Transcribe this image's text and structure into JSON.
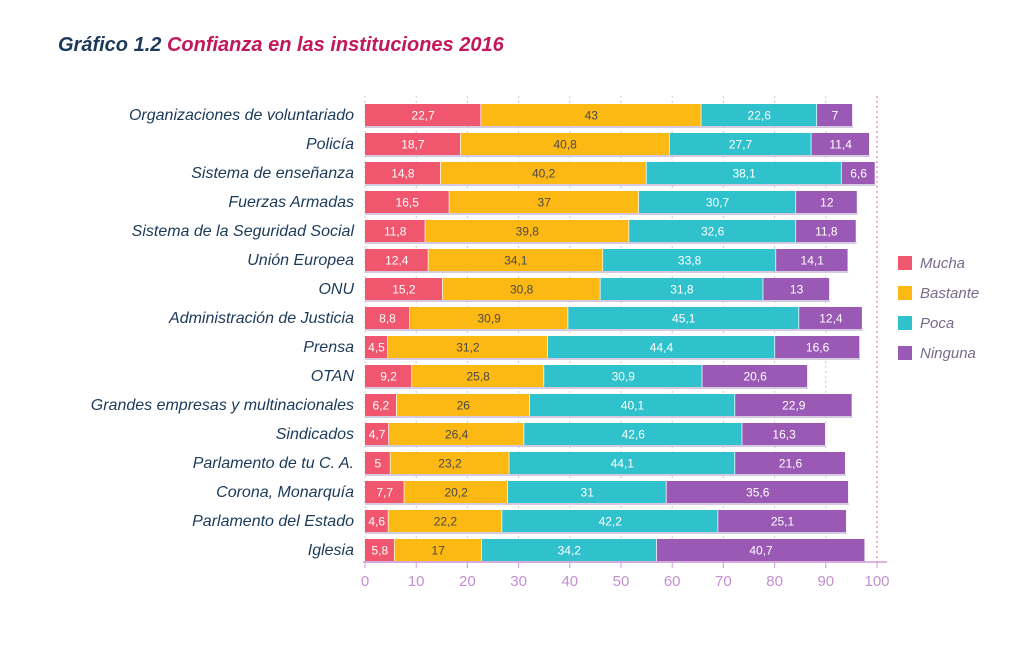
{
  "title": {
    "number": "Gráfico 1.2",
    "text": "Confianza en las instituciones 2016"
  },
  "chart_data": {
    "type": "bar",
    "orientation": "horizontal",
    "stacked": true,
    "title": "Gráfico 1.2 Confianza en las instituciones 2016",
    "categories": [
      "Organizaciones de voluntariado",
      "Policía",
      "Sistema de enseñanza",
      "Fuerzas Armadas",
      "Sistema de la Seguridad Social",
      "Unión Europea",
      "ONU",
      "Administración de Justicia",
      "Prensa",
      "OTAN",
      "Grandes empresas y multinacionales",
      "Sindicados",
      "Parlamento de tu C. A.",
      "Corona, Monarquía",
      "Parlamento del Estado",
      "Iglesia"
    ],
    "series": [
      {
        "name": "Mucha",
        "color": "#f0566e",
        "values": [
          22.7,
          18.7,
          14.8,
          16.5,
          11.8,
          12.4,
          15.2,
          8.8,
          4.5,
          9.2,
          6.2,
          4.7,
          5,
          7.7,
          4.6,
          5.8
        ],
        "labels": [
          "22,7",
          "18,7",
          "14,8",
          "16,5",
          "11,8",
          "12,4",
          "15,2",
          "8,8",
          "4,5",
          "9,2",
          "6,2",
          "4,7",
          "5",
          "7,7",
          "4,6",
          "5,8"
        ]
      },
      {
        "name": "Bastante",
        "color": "#fcb813",
        "values": [
          43,
          40.8,
          40.2,
          37,
          39.8,
          34.1,
          30.8,
          30.9,
          31.2,
          25.8,
          26,
          26.4,
          23.2,
          20.2,
          22.2,
          17
        ],
        "labels": [
          "43",
          "40,8",
          "40,2",
          "37",
          "39,8",
          "34,1",
          "30,8",
          "30,9",
          "31,2",
          "25,8",
          "26",
          "26,4",
          "23,2",
          "20,2",
          "22,2",
          "17"
        ]
      },
      {
        "name": "Poca",
        "color": "#2fc2cc",
        "values": [
          22.6,
          27.7,
          38.1,
          30.7,
          32.6,
          33.8,
          31.8,
          45.1,
          44.4,
          30.9,
          40.1,
          42.6,
          44.1,
          31,
          42.2,
          34.2
        ],
        "labels": [
          "22,6",
          "27,7",
          "38,1",
          "30,7",
          "32,6",
          "33,8",
          "31,8",
          "45,1",
          "44,4",
          "30,9",
          "40,1",
          "42,6",
          "44,1",
          "31",
          "42,2",
          "34,2"
        ]
      },
      {
        "name": "Ninguna",
        "color": "#9b59b6",
        "values": [
          7,
          11.4,
          6.6,
          12,
          11.8,
          14.1,
          13,
          12.4,
          16.6,
          20.6,
          22.9,
          16.3,
          21.6,
          35.6,
          25.1,
          40.7
        ],
        "labels": [
          "7",
          "11,4",
          "6,6",
          "12",
          "11,8",
          "14,1",
          "13",
          "12,4",
          "16,6",
          "20,6",
          "22,9",
          "16,3",
          "21,6",
          "35,6",
          "25,1",
          "40,7"
        ]
      }
    ],
    "xlim": [
      0,
      100
    ],
    "xticks": [
      0,
      10,
      20,
      30,
      40,
      50,
      60,
      70,
      80,
      90,
      100
    ],
    "grid": true,
    "legend_position": "right"
  }
}
